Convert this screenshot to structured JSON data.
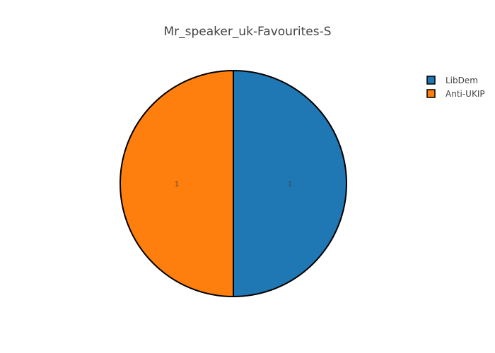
{
  "chart_data": {
    "type": "pie",
    "title": "Mr_speaker_uk-Favourites-S",
    "slices": [
      {
        "label": "LibDem",
        "value": 1,
        "display": "1",
        "color": "#1f77b4"
      },
      {
        "label": "Anti-UKIP",
        "value": 1,
        "display": "1",
        "color": "#ff7f0e"
      }
    ],
    "slice_stroke": "#000000",
    "legend": {
      "position": "top-right",
      "items": [
        "LibDem",
        "Anti-UKIP"
      ]
    },
    "direction": "clockwise",
    "start_angle_deg": 90
  }
}
